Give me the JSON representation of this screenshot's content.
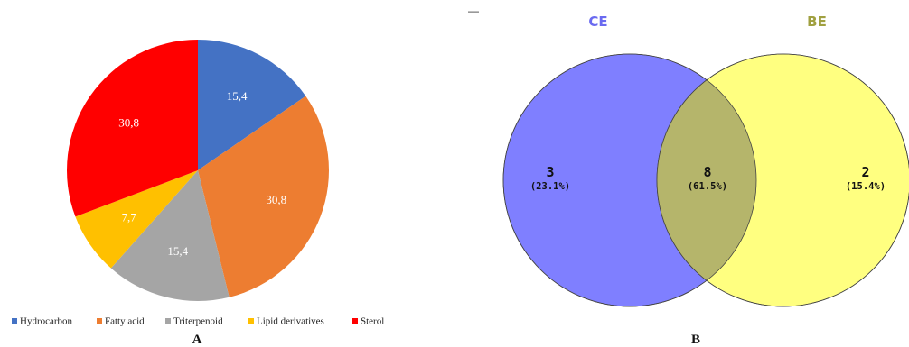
{
  "chart_data": [
    {
      "type": "pie",
      "panel_label": "A",
      "slices": [
        {
          "name": "Hydrocarbon",
          "value": 15.4,
          "label": "15,4",
          "color": "#4472c4"
        },
        {
          "name": "Fatty acid",
          "value": 30.8,
          "label": "30,8",
          "color": "#ed7d31"
        },
        {
          "name": "Triterpenoid",
          "value": 15.4,
          "label": "15,4",
          "color": "#a5a5a5"
        },
        {
          "name": "Lipid derivatives",
          "value": 7.7,
          "label": "7,7",
          "color": "#ffc000"
        },
        {
          "name": "Sterol",
          "value": 30.8,
          "label": "30,8",
          "color": "#ff0000"
        }
      ],
      "legend_position": "bottom"
    },
    {
      "type": "venn",
      "panel_label": "B",
      "sets": [
        {
          "name": "CE",
          "color": "#7f7fff",
          "title_color": "#6a6af0"
        },
        {
          "name": "BE",
          "color": "#ffff80",
          "title_color": "#a0a040"
        }
      ],
      "regions": [
        {
          "sets": [
            "CE"
          ],
          "count": "3",
          "percent": "(23.1%)"
        },
        {
          "sets": [
            "CE",
            "BE"
          ],
          "count": "8",
          "percent": "(61.5%)",
          "color": "#b5b56b"
        },
        {
          "sets": [
            "BE"
          ],
          "count": "2",
          "percent": "(15.4%)"
        }
      ],
      "corner_mark": "—"
    }
  ]
}
